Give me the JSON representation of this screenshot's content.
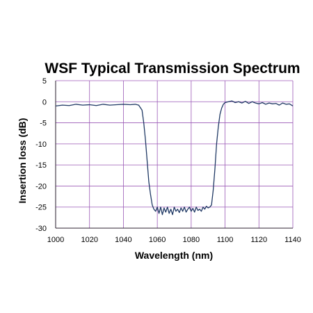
{
  "chart_data": {
    "type": "line",
    "title": "WSF Typical Transmission Spectrum",
    "xlabel": "Wavelength (nm)",
    "ylabel": "Insertion loss  (dB)",
    "xlim": [
      1000,
      1140
    ],
    "ylim": [
      -30,
      5
    ],
    "x_ticks": [
      1000,
      1020,
      1040,
      1060,
      1080,
      1100,
      1120,
      1140
    ],
    "y_ticks": [
      5,
      0,
      -5,
      -10,
      -15,
      -20,
      -25,
      -30
    ],
    "grid": true,
    "legend": "none",
    "colors": {
      "line": "#1f3864",
      "grid": "#9b59b6",
      "axis": "#000000"
    },
    "series": [
      {
        "x": [
          1000,
          1004,
          1008,
          1012,
          1016,
          1020,
          1024,
          1028,
          1032,
          1036,
          1040,
          1044,
          1047,
          1049,
          1051,
          1052,
          1053,
          1054,
          1055,
          1056,
          1057,
          1058,
          1059,
          1060,
          1061,
          1062,
          1063,
          1064,
          1065,
          1066,
          1067,
          1068,
          1069,
          1070,
          1071,
          1072,
          1073,
          1074,
          1075,
          1076,
          1077,
          1078,
          1079,
          1080,
          1081,
          1082,
          1083,
          1084,
          1085,
          1086,
          1087,
          1088,
          1089,
          1090,
          1091,
          1092,
          1093,
          1094,
          1095,
          1096,
          1097,
          1098,
          1099,
          1100,
          1102,
          1104,
          1106,
          1108,
          1110,
          1112,
          1114,
          1116,
          1118,
          1120,
          1122,
          1124,
          1126,
          1128,
          1130,
          1132,
          1134,
          1136,
          1138,
          1140
        ],
        "y": [
          -1.0,
          -0.8,
          -0.9,
          -0.6,
          -0.8,
          -0.7,
          -0.9,
          -0.6,
          -0.8,
          -0.7,
          -0.6,
          -0.7,
          -0.6,
          -0.8,
          -2.0,
          -5.0,
          -9.0,
          -14.0,
          -19.0,
          -22.0,
          -24.5,
          -25.5,
          -26.0,
          -25.0,
          -26.5,
          -25.0,
          -26.8,
          -25.2,
          -26.2,
          -25.0,
          -26.5,
          -25.5,
          -26.8,
          -25.0,
          -26.0,
          -25.5,
          -26.3,
          -25.2,
          -26.0,
          -25.0,
          -26.2,
          -25.5,
          -25.0,
          -26.0,
          -25.3,
          -26.2,
          -25.0,
          -25.8,
          -25.5,
          -26.0,
          -25.0,
          -25.5,
          -24.8,
          -25.2,
          -25.0,
          -24.5,
          -21.0,
          -16.0,
          -10.0,
          -6.0,
          -3.0,
          -1.5,
          -0.6,
          -0.2,
          0.0,
          0.2,
          -0.2,
          0.0,
          -0.3,
          0.1,
          -0.4,
          0.0,
          -0.3,
          -0.5,
          -0.2,
          -0.6,
          -0.3,
          -0.5,
          -0.4,
          -0.8,
          -0.3,
          -0.6,
          -0.5,
          -1.0
        ]
      }
    ]
  }
}
